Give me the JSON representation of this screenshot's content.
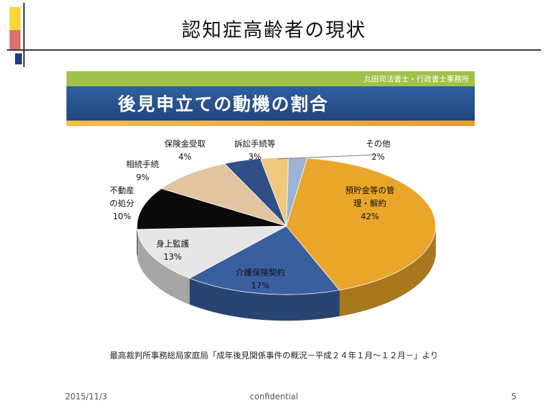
{
  "slide": {
    "title": "認知症高齢者の現状",
    "banner_org": "丸田司法書士・行政書士事務所",
    "banner_title": "後見申立ての動機の割合",
    "source": "最高裁判所事務総局家庭局「成年後見関係事件の概況－平成２４年１月～１２月－」より",
    "footer_date": "2015/11/3",
    "footer_center": "confidential",
    "footer_page": "5"
  },
  "colors": {
    "accent_yellow": "#f5d63b",
    "accent_red": "#d9443a",
    "accent_blue": "#1f3a8a",
    "banner_green": "#9ec24b",
    "banner_blue": "#2f5fa0"
  },
  "chart_data": {
    "type": "pie",
    "title": "後見申立ての動機の割合",
    "slices": [
      {
        "label_lines": [
          "預貯金等の管",
          "理・解約"
        ],
        "value": 42,
        "value_label": "42%",
        "color": "#e9a62a"
      },
      {
        "label_lines": [
          "介護保険契約"
        ],
        "value": 17,
        "value_label": "17%",
        "color": "#3a5f9f"
      },
      {
        "label_lines": [
          "身上監護"
        ],
        "value": 13,
        "value_label": "13%",
        "color": "#e6e6e6"
      },
      {
        "label_lines": [
          "不動産",
          "の処分"
        ],
        "value": 10,
        "value_label": "10%",
        "color": "#0a0a0a"
      },
      {
        "label_lines": [
          "相続手続"
        ],
        "value": 9,
        "value_label": "9%",
        "color": "#e2c4a0"
      },
      {
        "label_lines": [
          "保険金受取"
        ],
        "value": 4,
        "value_label": "4%",
        "color": "#2f4f86"
      },
      {
        "label_lines": [
          "訴訟手続等"
        ],
        "value": 3,
        "value_label": "3%",
        "color": "#f2c77e"
      },
      {
        "label_lines": [
          "その他"
        ],
        "value": 2,
        "value_label": "2%",
        "color": "#9db4d6"
      }
    ]
  }
}
